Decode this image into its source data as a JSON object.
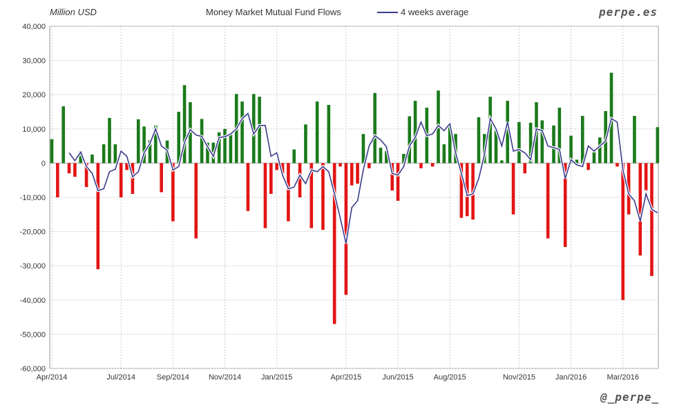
{
  "header": {
    "unit": "Million USD",
    "brand": "perpe.es",
    "handle": "@_perpe_"
  },
  "chart_data": {
    "type": "bar",
    "title": "Money Market Mutual Fund Flows",
    "ylabel": "Million USD",
    "ylim": [
      -60000,
      40000
    ],
    "yticks": [
      -60000,
      -50000,
      -40000,
      -30000,
      -20000,
      -10000,
      0,
      10000,
      20000,
      30000,
      40000
    ],
    "ytick_labels": [
      "-60,000",
      "-50,000",
      "-40,000",
      "-30,000",
      "-20,000",
      "-10,000",
      "0",
      "10,000",
      "20,000",
      "30,000",
      "40,000"
    ],
    "xtick_labels": [
      "Apr/2014",
      "Jul/2014",
      "Sep/2014",
      "Nov/2014",
      "Jan/2015",
      "Apr/2015",
      "Jun/2015",
      "Aug/2015",
      "Nov/2015",
      "Jan/2016",
      "Mar/2016"
    ],
    "xtick_weeks": [
      0,
      12,
      21,
      30,
      39,
      51,
      60,
      69,
      81,
      90,
      99
    ],
    "grid": true,
    "positive_color": "#1a7a1a",
    "negative_color": "#e31414",
    "weekly_flows": [
      7000,
      -10000,
      16600,
      -3000,
      -4000,
      3500,
      -7000,
      2500,
      -31000,
      5500,
      13200,
      5500,
      -10000,
      -2000,
      -9000,
      12800,
      10700,
      6700,
      11000,
      -8500,
      6600,
      -17000,
      15000,
      22800,
      17800,
      -22000,
      12900,
      6000,
      6000,
      9000,
      10000,
      8500,
      20200,
      18000,
      -14000,
      20200,
      19400,
      -19000,
      -9000,
      -2000,
      -3000,
      -17000,
      4000,
      -10000,
      11300,
      -19000,
      18000,
      -19500,
      17000,
      -47000,
      -1000,
      -38500,
      -6500,
      -6000,
      8500,
      -1500,
      20500,
      4500,
      3500,
      -8000,
      -11000,
      2700,
      13700,
      18200,
      -1500,
      16200,
      -1000,
      21200,
      5500,
      11000,
      8500,
      -16000,
      -15500,
      -16500,
      13400,
      8500,
      19400,
      9500,
      800,
      18200,
      -15000,
      12000,
      -3000,
      11800,
      17800,
      12500,
      -22000,
      11000,
      16200,
      -24500,
      8000,
      1000,
      13800,
      -2000,
      3200,
      7500,
      15200,
      26400,
      -1000,
      -40000,
      -15000,
      13800,
      -27000,
      -8000,
      -33000,
      10500
    ],
    "series": [
      {
        "name": "4 weeks average",
        "color": "#3a3a8c",
        "start_week": 3,
        "values": [
          3000,
          700,
          3200,
          -1000,
          -3000,
          -8000,
          -7500,
          -2500,
          -1800,
          3500,
          2000,
          -4000,
          -2500,
          3000,
          5700,
          10000,
          5000,
          3800,
          -2000,
          -1000,
          6000,
          9800,
          8200,
          7800,
          4800,
          2000,
          7500,
          7700,
          8500,
          10000,
          13000,
          14500,
          8500,
          11000,
          11000,
          2000,
          3000,
          -3500,
          -7500,
          -7000,
          -3500,
          -6000,
          -2000,
          -2500,
          -1000,
          -2500,
          -9000,
          -16000,
          -23500,
          -13000,
          -11000,
          -2000,
          5000,
          8000,
          6800,
          4800,
          -3000,
          -3500,
          -1000,
          5000,
          7500,
          12000,
          8000,
          8500,
          11000,
          9500,
          11500,
          3000,
          -3000,
          -9500,
          -9000,
          -4500,
          2500,
          13000,
          10000,
          5000,
          12000,
          3500,
          4000,
          3000,
          1000,
          10000,
          9500,
          5000,
          4500,
          4000,
          -4500,
          1000,
          -500,
          -1000,
          5000,
          3500,
          5000,
          6500,
          13000,
          12000,
          -2000,
          -9000,
          -11000,
          -17000,
          -9000,
          -13500,
          -14500
        ]
      }
    ]
  }
}
